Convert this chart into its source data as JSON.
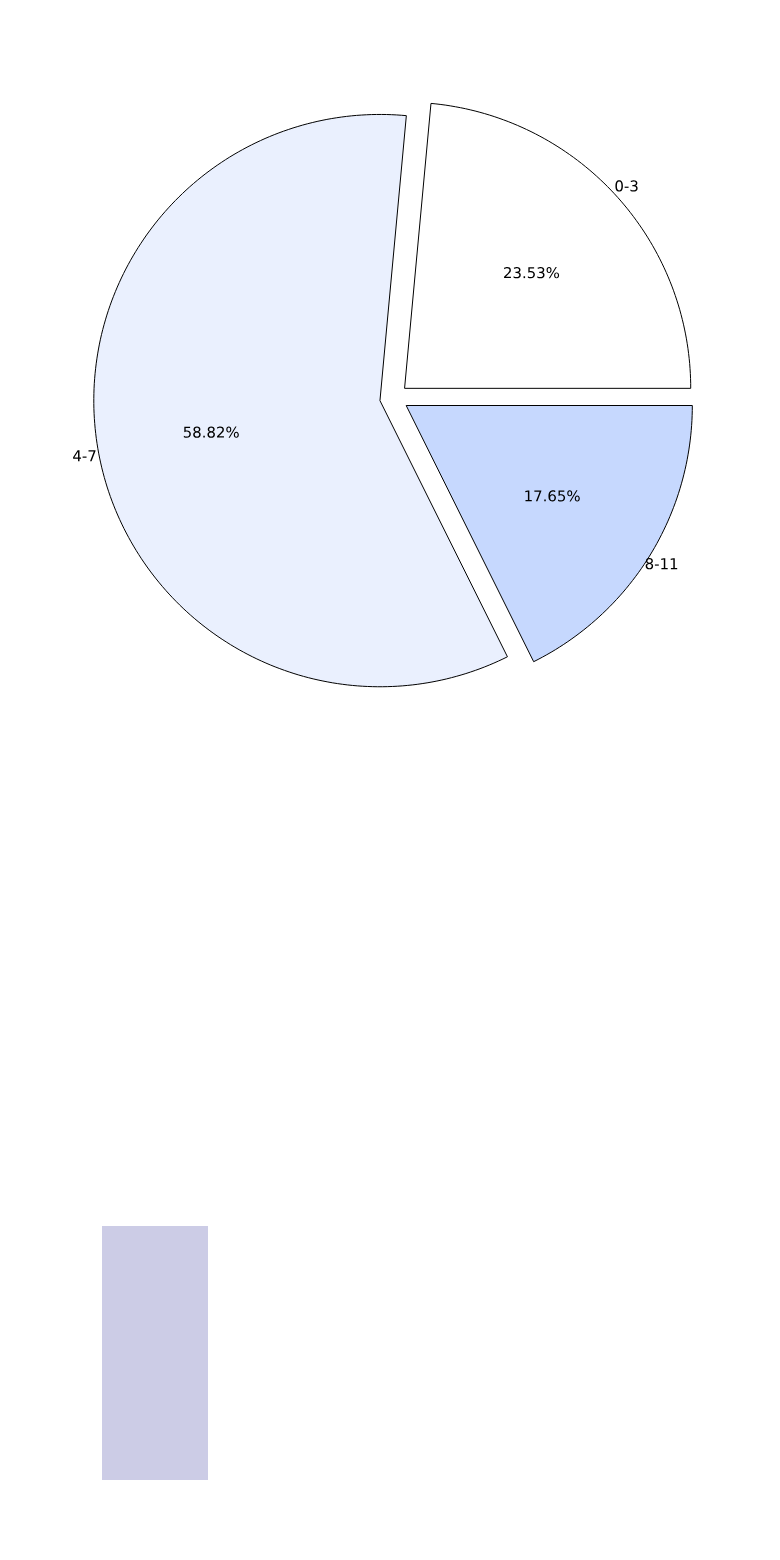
{
  "chart_data": [
    {
      "type": "pie",
      "categories": [
        "0-3",
        "4-7",
        "8-11"
      ],
      "values": [
        23.53,
        58.82,
        17.65
      ],
      "colors": [
        "#ffffff",
        "#eaf0fe",
        "#c6d8fe"
      ],
      "value_labels": [
        "23.53%",
        "58.82%",
        "17.65%"
      ]
    }
  ]
}
